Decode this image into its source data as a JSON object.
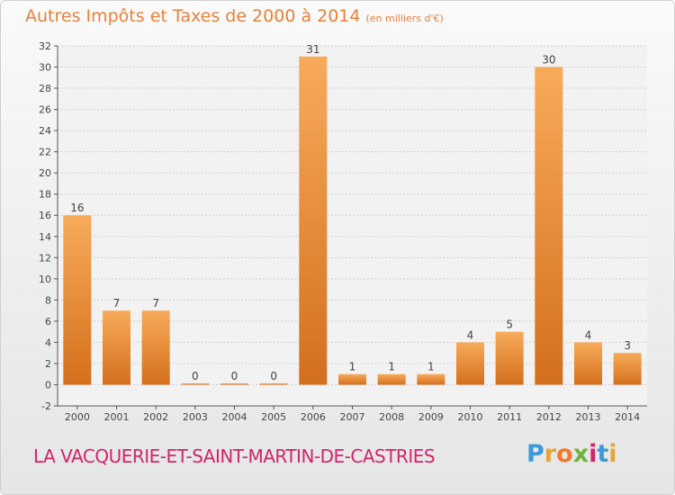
{
  "title": "Autres Impôts et Taxes de 2000 à 2014",
  "subtitle": "(en milliers d'€)",
  "commune": "LA VACQUERIE-ET-SAINT-MARTIN-DE-CASTRIES",
  "brand": {
    "letters": [
      "P",
      "r",
      "o",
      "x",
      "i",
      "t",
      "i"
    ],
    "colors": [
      "#3b9ad9",
      "#e8a531",
      "#f07c2b",
      "#6fb33f",
      "#d2246b",
      "#3b9ad9",
      "#e8a531"
    ]
  },
  "colors": {
    "bar_light": "#f7ab5a",
    "bar_dark": "#d46f1c",
    "title": "#e8813a",
    "commune": "#d2246b",
    "grid": "#d0d0d0"
  },
  "chart_data": {
    "type": "bar",
    "categories": [
      "2000",
      "2001",
      "2002",
      "2003",
      "2004",
      "2005",
      "2006",
      "2007",
      "2008",
      "2009",
      "2010",
      "2011",
      "2012",
      "2013",
      "2014"
    ],
    "values": [
      16,
      7,
      7,
      0,
      0,
      0,
      31,
      1,
      1,
      1,
      4,
      5,
      30,
      4,
      3
    ],
    "ylim": [
      -2,
      32
    ],
    "yticks": [
      -2,
      0,
      2,
      4,
      6,
      8,
      10,
      12,
      14,
      16,
      18,
      20,
      22,
      24,
      26,
      28,
      30,
      32
    ],
    "grid": true
  }
}
